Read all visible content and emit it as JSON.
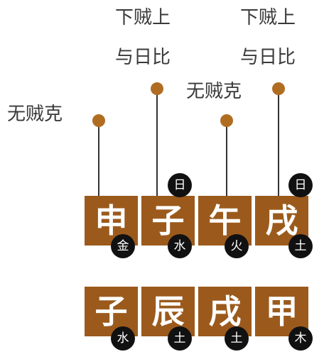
{
  "annotations": {
    "a1": "无贼克",
    "a2_line1": "下贼上",
    "a2_line2": "与日比",
    "a3": "无贼克",
    "a4_line1": "下贼上",
    "a4_line2": "与日比"
  },
  "top_row": [
    {
      "char": "申",
      "element": "金"
    },
    {
      "char": "子",
      "element": "水",
      "mark": "日"
    },
    {
      "char": "午",
      "element": "火"
    },
    {
      "char": "戌",
      "element": "土",
      "mark": "日"
    }
  ],
  "bottom_row": [
    {
      "char": "子",
      "element": "水"
    },
    {
      "char": "辰",
      "element": "土"
    },
    {
      "char": "戌",
      "element": "土"
    },
    {
      "char": "甲",
      "element": "木"
    }
  ],
  "colors": {
    "cell": "#9b5a1c",
    "dot": "#b06d22",
    "badge": "#111111"
  }
}
